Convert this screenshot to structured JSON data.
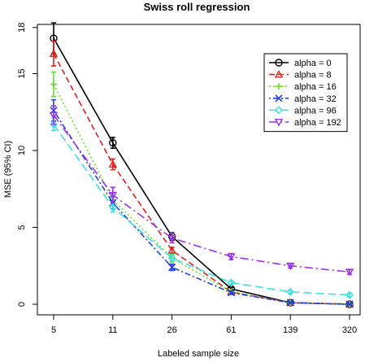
{
  "chart_data": {
    "type": "line",
    "title": "Swiss roll regression",
    "xlabel": "Labeled sample size",
    "ylabel": "MSE (95% CI)",
    "categories": [
      "5",
      "11",
      "26",
      "61",
      "139",
      "320"
    ],
    "yticks": [
      0,
      5,
      10,
      15,
      18
    ],
    "ylim": [
      0,
      19
    ],
    "legend_position": "top-right",
    "grid": false,
    "series": [
      {
        "name": "alpha = 0",
        "color": "#000000",
        "marker": "circle",
        "dash": "none",
        "values": [
          17.3,
          10.5,
          4.4,
          1.0,
          0.1,
          0.0
        ],
        "ci": [
          1.0,
          0.35,
          0.25,
          0.1,
          0.05,
          0.05
        ]
      },
      {
        "name": "alpha = 8",
        "color": "#df2020",
        "marker": "triangle-up",
        "dash": "7,4",
        "values": [
          16.3,
          9.1,
          3.5,
          0.8,
          0.1,
          0.0
        ],
        "ci": [
          0.8,
          0.35,
          0.2,
          0.1,
          0.05,
          0.05
        ]
      },
      {
        "name": "alpha = 16",
        "color": "#66dd33",
        "marker": "plus",
        "dash": "2,3",
        "values": [
          14.3,
          6.8,
          3.0,
          0.8,
          0.1,
          0.0
        ],
        "ci": [
          0.8,
          0.4,
          0.25,
          0.1,
          0.05,
          0.05
        ]
      },
      {
        "name": "alpha = 32",
        "color": "#2244dd",
        "marker": "x",
        "dash": "2,3,7,3",
        "values": [
          12.6,
          6.6,
          2.4,
          0.75,
          0.1,
          0.0
        ],
        "ci": [
          0.7,
          0.4,
          0.2,
          0.1,
          0.05,
          0.05
        ]
      },
      {
        "name": "alpha = 96",
        "color": "#44dddd",
        "marker": "diamond",
        "dash": "10,5",
        "values": [
          11.7,
          6.3,
          3.0,
          1.4,
          0.8,
          0.6
        ],
        "ci": [
          0.4,
          0.3,
          0.2,
          0.1,
          0.1,
          0.1
        ]
      },
      {
        "name": "alpha = 192",
        "color": "#9933ee",
        "marker": "triangle-down",
        "dash": "10,4,2,4",
        "values": [
          12.3,
          7.1,
          4.3,
          3.1,
          2.5,
          2.1
        ],
        "ci": [
          0.6,
          0.5,
          0.3,
          0.2,
          0.15,
          0.15
        ]
      }
    ]
  }
}
